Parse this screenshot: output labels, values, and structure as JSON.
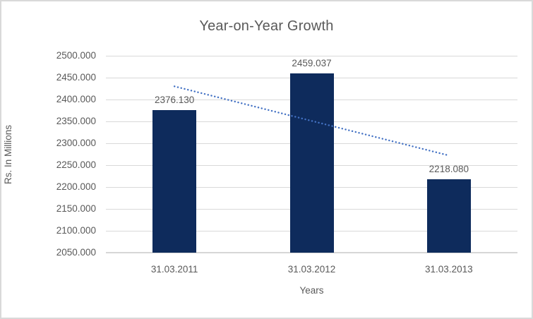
{
  "chart_data": {
    "type": "bar",
    "title": "Year-on-Year Growth",
    "xlabel": "Years",
    "ylabel": "Rs. In Millions",
    "categories": [
      "31.03.2011",
      "31.03.2012",
      "31.03.2013"
    ],
    "values": [
      2376.13,
      2459.037,
      2218.08
    ],
    "data_labels": [
      "2376.130",
      "2459.037",
      "2218.080"
    ],
    "ylim": [
      2050,
      2500
    ],
    "ytick_step": 50,
    "ytick_labels": [
      "2500.000",
      "2450.000",
      "2400.000",
      "2350.000",
      "2300.000",
      "2250.000",
      "2200.000",
      "2150.000",
      "2100.000",
      "2050.000"
    ],
    "grid": true,
    "legend": "none",
    "trendline": {
      "type": "linear",
      "style": "dotted",
      "x_category_indexes": [
        0,
        2
      ],
      "values": [
        2430.1,
        2272.1
      ]
    },
    "colors": {
      "bar": "#0E2B5C",
      "trendline": "#4472C4",
      "text": "#595959",
      "gridline": "#D9D9D9",
      "axis_line": "#D6D6D6",
      "background": "#FFFFFF",
      "border": "#D9D9D9"
    }
  }
}
